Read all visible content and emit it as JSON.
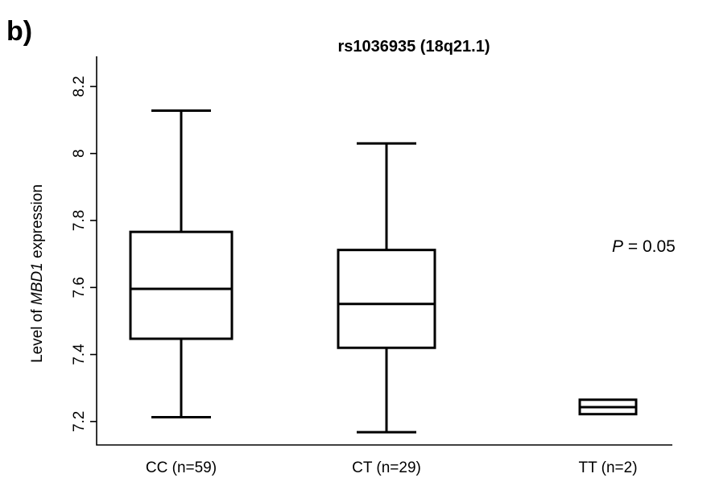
{
  "panel_label": "b)",
  "chart_data": {
    "type": "boxplot",
    "title": "rs1036935 (18q21.1)",
    "ylabel_parts": [
      "Level of ",
      "MBD1",
      " expression"
    ],
    "ylim": [
      7.13,
      8.29
    ],
    "yticks": [
      7.2,
      7.4,
      7.6,
      7.8,
      8,
      8.2
    ],
    "ytick_labels": [
      "7.2",
      "7.4",
      "7.6",
      "7.8",
      "8",
      "8.2"
    ],
    "categories": [
      "CC (n=59)",
      "CT (n=29)",
      "TT (n=2)"
    ],
    "boxes": [
      {
        "category": "CC (n=59)",
        "whisker_low": 7.213,
        "q1": 7.447,
        "median": 7.596,
        "q3": 7.766,
        "whisker_high": 8.128
      },
      {
        "category": "CT (n=29)",
        "whisker_low": 7.168,
        "q1": 7.42,
        "median": 7.551,
        "q3": 7.712,
        "whisker_high": 8.03
      },
      {
        "category": "TT (n=2)",
        "whisker_low": 7.222,
        "q1": 7.222,
        "median": 7.243,
        "q3": 7.265,
        "whisker_high": 7.265
      }
    ],
    "annotation": {
      "italic": "P",
      "text": " = 0.05"
    }
  }
}
